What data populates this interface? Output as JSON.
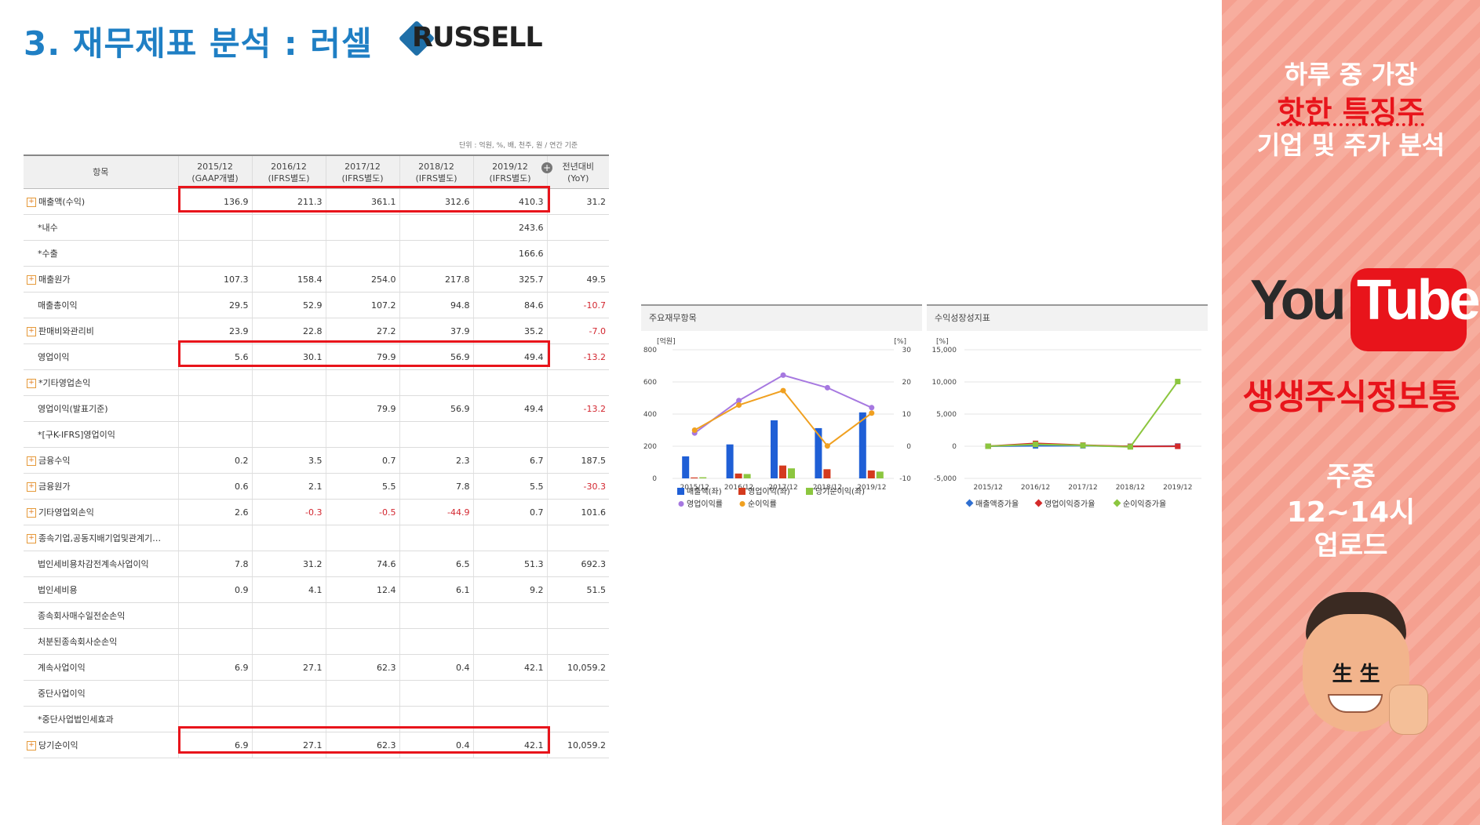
{
  "title": "3. 재무제표 분석 : 러셀",
  "logo": {
    "brand": "RUSSELL"
  },
  "unit_note": "단위 : 억원, %, 배, 천주, 원 / 연간 기준",
  "table": {
    "headers": [
      {
        "top": "항목",
        "bottom": ""
      },
      {
        "top": "2015/12",
        "bottom": "(GAAP개별)"
      },
      {
        "top": "2016/12",
        "bottom": "(IFRS별도)"
      },
      {
        "top": "2017/12",
        "bottom": "(IFRS별도)"
      },
      {
        "top": "2018/12",
        "bottom": "(IFRS별도)"
      },
      {
        "top": "2019/12",
        "bottom": "(IFRS별도)"
      },
      {
        "top": "전년대비",
        "bottom": "(YoY)"
      }
    ],
    "rows": [
      {
        "label": "매출액(수익)",
        "expand": true,
        "values": [
          "136.9",
          "211.3",
          "361.1",
          "312.6",
          "410.3",
          "31.2"
        ]
      },
      {
        "label": "*내수",
        "expand": false,
        "values": [
          "",
          "",
          "",
          "",
          "243.6",
          ""
        ]
      },
      {
        "label": "*수출",
        "expand": false,
        "values": [
          "",
          "",
          "",
          "",
          "166.6",
          ""
        ]
      },
      {
        "label": "매출원가",
        "expand": true,
        "values": [
          "107.3",
          "158.4",
          "254.0",
          "217.8",
          "325.7",
          "49.5"
        ]
      },
      {
        "label": "매출총이익",
        "expand": false,
        "values": [
          "29.5",
          "52.9",
          "107.2",
          "94.8",
          "84.6",
          "-10.7"
        ]
      },
      {
        "label": "판매비와관리비",
        "expand": true,
        "values": [
          "23.9",
          "22.8",
          "27.2",
          "37.9",
          "35.2",
          "-7.0"
        ]
      },
      {
        "label": "영업이익",
        "expand": false,
        "values": [
          "5.6",
          "30.1",
          "79.9",
          "56.9",
          "49.4",
          "-13.2"
        ]
      },
      {
        "label": "*기타영업손익",
        "expand": true,
        "values": [
          "",
          "",
          "",
          "",
          "",
          ""
        ]
      },
      {
        "label": "영업이익(발표기준)",
        "expand": false,
        "values": [
          "",
          "",
          "79.9",
          "56.9",
          "49.4",
          "-13.2"
        ]
      },
      {
        "label": "*[구K-IFRS]영업이익",
        "expand": false,
        "values": [
          "",
          "",
          "",
          "",
          "",
          ""
        ]
      },
      {
        "label": "금융수익",
        "expand": true,
        "values": [
          "0.2",
          "3.5",
          "0.7",
          "2.3",
          "6.7",
          "187.5"
        ]
      },
      {
        "label": "금융원가",
        "expand": true,
        "values": [
          "0.6",
          "2.1",
          "5.5",
          "7.8",
          "5.5",
          "-30.3"
        ]
      },
      {
        "label": "기타영업외손익",
        "expand": true,
        "values": [
          "2.6",
          "-0.3",
          "-0.5",
          "-44.9",
          "0.7",
          "101.6"
        ]
      },
      {
        "label": "종속기업,공동지배기업및관계기…",
        "expand": true,
        "values": [
          "",
          "",
          "",
          "",
          "",
          ""
        ]
      },
      {
        "label": "법인세비용차감전계속사업이익",
        "expand": false,
        "values": [
          "7.8",
          "31.2",
          "74.6",
          "6.5",
          "51.3",
          "692.3"
        ]
      },
      {
        "label": "법인세비용",
        "expand": false,
        "values": [
          "0.9",
          "4.1",
          "12.4",
          "6.1",
          "9.2",
          "51.5"
        ]
      },
      {
        "label": "종속회사매수일전순손익",
        "expand": false,
        "values": [
          "",
          "",
          "",
          "",
          "",
          ""
        ]
      },
      {
        "label": "처분된종속회사순손익",
        "expand": false,
        "values": [
          "",
          "",
          "",
          "",
          "",
          ""
        ]
      },
      {
        "label": "계속사업이익",
        "expand": false,
        "values": [
          "6.9",
          "27.1",
          "62.3",
          "0.4",
          "42.1",
          "10,059.2"
        ]
      },
      {
        "label": "중단사업이익",
        "expand": false,
        "values": [
          "",
          "",
          "",
          "",
          "",
          ""
        ]
      },
      {
        "label": "*중단사업법인세효과",
        "expand": false,
        "values": [
          "",
          "",
          "",
          "",
          "",
          ""
        ]
      },
      {
        "label": "당기순이익",
        "expand": true,
        "values": [
          "6.9",
          "27.1",
          "62.3",
          "0.4",
          "42.1",
          "10,059.2"
        ]
      }
    ]
  },
  "chart_data": [
    {
      "type": "bar",
      "title": "주요재무항목",
      "categories": [
        "2015/12",
        "2016/12",
        "2017/12",
        "2018/12",
        "2019/12"
      ],
      "left_unit": "[억원]",
      "right_unit": "[%]",
      "ylim_left": [
        0,
        800
      ],
      "ylim_right": [
        -10,
        30
      ],
      "left_ticks": [
        "800",
        "600",
        "400",
        "200",
        "0"
      ],
      "right_ticks": [
        "30",
        "20",
        "10",
        "0",
        "-10"
      ],
      "series": [
        {
          "name": "매출액(좌)",
          "kind": "bar",
          "axis": "left",
          "color": "#1f5fd6",
          "values": [
            136.9,
            211.3,
            361.1,
            312.6,
            410.3
          ]
        },
        {
          "name": "영업이익(좌)",
          "kind": "bar",
          "axis": "left",
          "color": "#d43a1e",
          "values": [
            5.6,
            30.1,
            79.9,
            56.9,
            49.4
          ]
        },
        {
          "name": "당기순이익(좌)",
          "kind": "bar",
          "axis": "left",
          "color": "#8cc63f",
          "values": [
            6.9,
            27.1,
            62.3,
            0.4,
            42.1
          ]
        },
        {
          "name": "영업이익률",
          "kind": "line",
          "axis": "right",
          "color": "#a678e0",
          "values": [
            4.1,
            14.2,
            22.1,
            18.2,
            12.0
          ]
        },
        {
          "name": "순이익률",
          "kind": "line",
          "axis": "right",
          "color": "#f0a020",
          "values": [
            5.0,
            12.8,
            17.3,
            0.1,
            10.3
          ]
        }
      ]
    },
    {
      "type": "line",
      "title": "수익성장성지표",
      "categories": [
        "2015/12",
        "2016/12",
        "2017/12",
        "2018/12",
        "2019/12"
      ],
      "left_unit": "[%]",
      "ylim": [
        -5000,
        15000
      ],
      "ticks": [
        "15,000",
        "10,000",
        "5,000",
        "0",
        "-5,000"
      ],
      "series": [
        {
          "name": "매출액증가율",
          "color": "#2f6fd0",
          "values": [
            0,
            54.3,
            70.9,
            -13.4,
            31.2
          ]
        },
        {
          "name": "영업이익증가율",
          "color": "#d42a2a",
          "values": [
            0,
            437.5,
            165.4,
            -28.8,
            -13.2
          ]
        },
        {
          "name": "순이익증가율",
          "color": "#8cc63f",
          "values": [
            0,
            292.8,
            129.9,
            -99.4,
            10059.2
          ]
        }
      ]
    }
  ],
  "sidebar": {
    "line1": "하루 중 가장",
    "line2": "핫한 특징주",
    "line3": "기업 및 주가 분석",
    "yt_you": "You",
    "yt_tube": "Tube",
    "channel": "생생주식정보통",
    "sched1": "주중",
    "sched2": "12~14시",
    "sched3": "업로드",
    "badge": "生 生",
    "colors": {
      "accent": "#e8141b",
      "text_white": "#ffffff"
    }
  }
}
